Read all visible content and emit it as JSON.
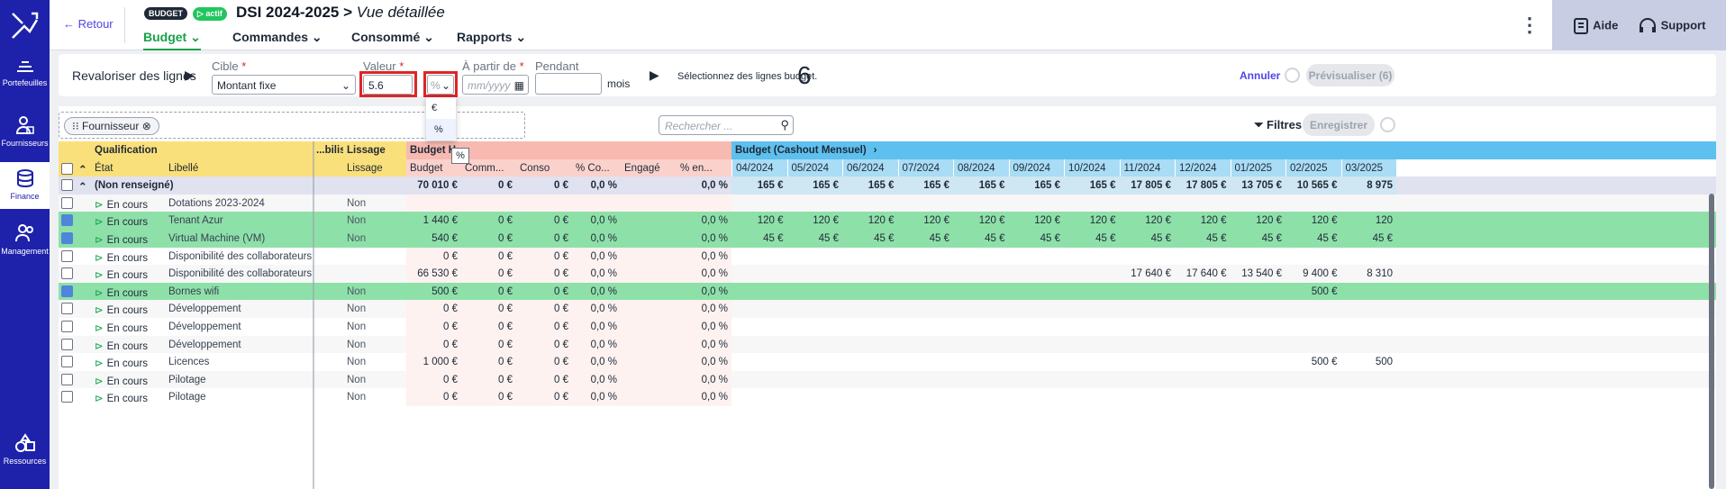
{
  "colors": {
    "sidebar": "#1e22aa",
    "accent_green": "#16a34a",
    "selected_row": "#8ee0a9",
    "highlight": "#dc2626"
  },
  "sidebar": {
    "items": [
      {
        "label": "Portefeuilles",
        "icon": "layers-icon"
      },
      {
        "label": "Fournisseurs",
        "icon": "supplier-icon"
      },
      {
        "label": "Finance",
        "icon": "database-icon"
      },
      {
        "label": "Management",
        "icon": "users-icon"
      },
      {
        "label": "Ressources",
        "icon": "shapes-icon"
      }
    ]
  },
  "header": {
    "back": "← Retour",
    "badge_budget": "BUDGET",
    "badge_status": "▷ actif",
    "title": "DSI 2024-2025",
    "title_sep": ">",
    "subtitle": "Vue détaillée",
    "tabs": [
      "Budget",
      "Commandes",
      "Consommé",
      "Rapports"
    ],
    "help": "Aide",
    "support": "Support"
  },
  "revalue": {
    "title": "Revaloriser des lignes",
    "target_label": "Cible",
    "target_value": "Montant fixe",
    "value_label": "Valeur",
    "value": "5.6",
    "unit_value": "%",
    "from_label": "À partir de",
    "from_placeholder": "mm/yyyy",
    "during_label": "Pendant",
    "months": "mois",
    "hint": "Sélectionnez des lignes budget.",
    "count": "6",
    "cancel": "Annuler",
    "preview": "Prévisualiser (6)",
    "unit_options": [
      "€",
      "%"
    ],
    "tooltip": "%"
  },
  "toolbar": {
    "chip": "Fournisseur",
    "search_placeholder": "Rechercher ...",
    "filters": "Filtres",
    "save": "Enregistrer"
  },
  "table": {
    "group_headers": {
      "qualification": "Qualification",
      "immo": "...bilis...",
      "lissage": "Lissage",
      "budget_ht": "Budget H",
      "cashout": "Budget (Cashout Mensuel)"
    },
    "col_headers": {
      "etat": "État",
      "libelle": "Libellé",
      "lissage": "Lissage",
      "budget": "Budget",
      "comm": "Comm...",
      "conso": "Conso",
      "pct_co": "% Co...",
      "engage": "Engagé",
      "pct_en": "% en..."
    },
    "months": [
      "04/2024",
      "05/2024",
      "06/2024",
      "07/2024",
      "08/2024",
      "09/2024",
      "10/2024",
      "11/2024",
      "12/2024",
      "01/2025",
      "02/2025",
      "03/2025"
    ],
    "group_row": {
      "label": "(Non renseigné)",
      "budget": "70 010 €",
      "comm": "0 €",
      "conso": "0 €",
      "pct_co": "0,0 %",
      "pct_en": "0,0 %",
      "months": [
        "165 €",
        "165 €",
        "165 €",
        "165 €",
        "165 €",
        "165 €",
        "165 €",
        "17 805 €",
        "17 805 €",
        "13 705 €",
        "10 565 €",
        "8 975"
      ]
    },
    "rows": [
      {
        "checked": false,
        "sel": false,
        "state": "En cours",
        "label": "Dotations 2023-2024",
        "lissage": "Non",
        "budget": "",
        "comm": "",
        "conso": "",
        "pct_co": "",
        "pct_en": "",
        "months": [
          "",
          "",
          "",
          "",
          "",
          "",
          "",
          "",
          "",
          "",
          "",
          ""
        ]
      },
      {
        "checked": true,
        "sel": true,
        "state": "En cours",
        "label": "Tenant Azur",
        "lissage": "Non",
        "budget": "1 440 €",
        "comm": "0 €",
        "conso": "0 €",
        "pct_co": "0,0 %",
        "pct_en": "0,0 %",
        "months": [
          "120 €",
          "120 €",
          "120 €",
          "120 €",
          "120 €",
          "120 €",
          "120 €",
          "120 €",
          "120 €",
          "120 €",
          "120 €",
          "120"
        ]
      },
      {
        "checked": true,
        "sel": true,
        "state": "En cours",
        "label": "Virtual Machine (VM)",
        "lissage": "Non",
        "budget": "540 €",
        "comm": "0 €",
        "conso": "0 €",
        "pct_co": "0,0 %",
        "pct_en": "0,0 %",
        "months": [
          "45 €",
          "45 €",
          "45 €",
          "45 €",
          "45 €",
          "45 €",
          "45 €",
          "45 €",
          "45 €",
          "45 €",
          "45 €",
          "45 €"
        ]
      },
      {
        "checked": false,
        "sel": false,
        "state": "En cours",
        "label": "Disponibilité des collaborateurs i...",
        "lissage": "",
        "budget": "0 €",
        "comm": "0 €",
        "conso": "0 €",
        "pct_co": "0,0 %",
        "pct_en": "0,0 %",
        "months": [
          "",
          "",
          "",
          "",
          "",
          "",
          "",
          "",
          "",
          "",
          "",
          ""
        ]
      },
      {
        "checked": false,
        "sel": false,
        "state": "En cours",
        "label": "Disponibilité des collaborateurs e...",
        "lissage": "",
        "budget": "66 530 €",
        "comm": "0 €",
        "conso": "0 €",
        "pct_co": "0,0 %",
        "pct_en": "0,0 %",
        "months": [
          "",
          "",
          "",
          "",
          "",
          "",
          "",
          "17 640 €",
          "17 640 €",
          "13 540 €",
          "9 400 €",
          "8 310"
        ]
      },
      {
        "checked": true,
        "sel": true,
        "state": "En cours",
        "label": "Bornes wifi",
        "lissage": "Non",
        "budget": "500 €",
        "comm": "0 €",
        "conso": "0 €",
        "pct_co": "0,0 %",
        "pct_en": "0,0 %",
        "months": [
          "",
          "",
          "",
          "",
          "",
          "",
          "",
          "",
          "",
          "",
          "500 €",
          ""
        ]
      },
      {
        "checked": false,
        "sel": false,
        "state": "En cours",
        "label": "Développement",
        "lissage": "Non",
        "budget": "0 €",
        "comm": "0 €",
        "conso": "0 €",
        "pct_co": "0,0 %",
        "pct_en": "0,0 %",
        "months": [
          "",
          "",
          "",
          "",
          "",
          "",
          "",
          "",
          "",
          "",
          "",
          ""
        ]
      },
      {
        "checked": false,
        "sel": false,
        "state": "En cours",
        "label": "Développement",
        "lissage": "Non",
        "budget": "0 €",
        "comm": "0 €",
        "conso": "0 €",
        "pct_co": "0,0 %",
        "pct_en": "0,0 %",
        "months": [
          "",
          "",
          "",
          "",
          "",
          "",
          "",
          "",
          "",
          "",
          "",
          ""
        ]
      },
      {
        "checked": false,
        "sel": false,
        "state": "En cours",
        "label": "Développement",
        "lissage": "Non",
        "budget": "0 €",
        "comm": "0 €",
        "conso": "0 €",
        "pct_co": "0,0 %",
        "pct_en": "0,0 %",
        "months": [
          "",
          "",
          "",
          "",
          "",
          "",
          "",
          "",
          "",
          "",
          "",
          ""
        ]
      },
      {
        "checked": false,
        "sel": false,
        "state": "En cours",
        "label": "Licences",
        "lissage": "Non",
        "budget": "1 000 €",
        "comm": "0 €",
        "conso": "0 €",
        "pct_co": "0,0 %",
        "pct_en": "0,0 %",
        "months": [
          "",
          "",
          "",
          "",
          "",
          "",
          "",
          "",
          "",
          "",
          "500 €",
          "500"
        ]
      },
      {
        "checked": false,
        "sel": false,
        "state": "En cours",
        "label": "Pilotage",
        "lissage": "Non",
        "budget": "0 €",
        "comm": "0 €",
        "conso": "0 €",
        "pct_co": "0,0 %",
        "pct_en": "0,0 %",
        "months": [
          "",
          "",
          "",
          "",
          "",
          "",
          "",
          "",
          "",
          "",
          "",
          ""
        ]
      },
      {
        "checked": false,
        "sel": false,
        "state": "En cours",
        "label": "Pilotage",
        "lissage": "Non",
        "budget": "0 €",
        "comm": "0 €",
        "conso": "0 €",
        "pct_co": "0,0 %",
        "pct_en": "0,0 %",
        "months": [
          "",
          "",
          "",
          "",
          "",
          "",
          "",
          "",
          "",
          "",
          "",
          ""
        ]
      }
    ]
  }
}
